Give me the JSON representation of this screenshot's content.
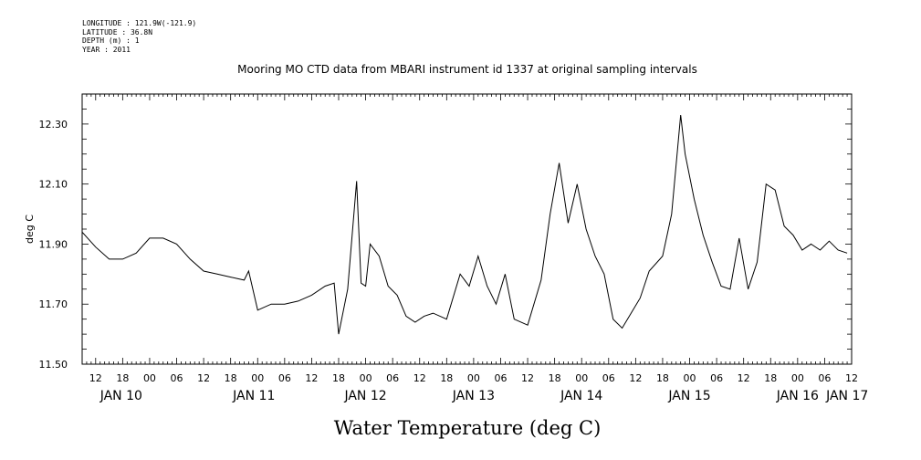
{
  "header": {
    "longitude": "LONGITUDE : 121.9W(-121.9)",
    "latitude": "LATITUDE : 36.8N",
    "depth": "DEPTH (m) : 1",
    "year": "YEAR : 2011"
  },
  "chart_data": {
    "type": "line",
    "title": "Mooring MO CTD data from MBARI instrument id 1337 at original sampling intervals",
    "xlabel": "Water Temperature (deg C)",
    "ylabel": "deg C",
    "xlim": [
      "2011-01-10T09:00",
      "2011-01-17T12:00"
    ],
    "ylim": [
      11.5,
      12.4
    ],
    "yticks": [
      "11.50",
      "11.70",
      "11.90",
      "12.10",
      "12.30"
    ],
    "xticks_hours": [
      "12",
      "18",
      "00",
      "06",
      "12",
      "18",
      "00",
      "06",
      "12",
      "18",
      "00",
      "06",
      "12",
      "18",
      "00",
      "06",
      "12",
      "18",
      "00",
      "06",
      "12",
      "18",
      "00",
      "06",
      "12",
      "18",
      "00",
      "06",
      "12"
    ],
    "day_labels": [
      "JAN 10",
      "JAN 11",
      "JAN 12",
      "JAN 13",
      "JAN 14",
      "JAN 15",
      "JAN 16",
      "JAN 17"
    ],
    "grid": false,
    "series": [
      {
        "x": [
          "2011-01-10T09:00",
          "2011-01-10T12:00",
          "2011-01-10T15:00",
          "2011-01-10T18:00",
          "2011-01-10T21:00",
          "2011-01-11T00:00",
          "2011-01-11T03:00",
          "2011-01-11T06:00",
          "2011-01-11T09:00",
          "2011-01-11T12:00",
          "2011-01-11T15:00",
          "2011-01-11T18:00",
          "2011-01-11T21:00",
          "2011-01-11T22:00",
          "2011-01-12T00:00",
          "2011-01-12T03:00",
          "2011-01-12T06:00",
          "2011-01-12T09:00",
          "2011-01-12T12:00",
          "2011-01-12T15:00",
          "2011-01-12T17:00",
          "2011-01-12T18:00",
          "2011-01-12T20:00",
          "2011-01-12T22:00",
          "2011-01-12T23:00",
          "2011-01-13T00:00",
          "2011-01-13T01:00",
          "2011-01-13T03:00",
          "2011-01-13T05:00",
          "2011-01-13T07:00",
          "2011-01-13T09:00",
          "2011-01-13T11:00",
          "2011-01-13T13:00",
          "2011-01-13T15:00",
          "2011-01-13T18:00",
          "2011-01-13T21:00",
          "2011-01-13T23:00",
          "2011-01-14T01:00",
          "2011-01-14T03:00",
          "2011-01-14T05:00",
          "2011-01-14T07:00",
          "2011-01-14T09:00",
          "2011-01-14T12:00",
          "2011-01-14T15:00",
          "2011-01-14T17:00",
          "2011-01-14T19:00",
          "2011-01-14T21:00",
          "2011-01-14T23:00",
          "2011-01-15T01:00",
          "2011-01-15T03:00",
          "2011-01-15T05:00",
          "2011-01-15T07:00",
          "2011-01-15T09:00",
          "2011-01-15T11:00",
          "2011-01-15T13:00",
          "2011-01-15T15:00",
          "2011-01-15T18:00",
          "2011-01-15T20:00",
          "2011-01-15T22:00",
          "2011-01-15T23:00",
          "2011-01-16T01:00",
          "2011-01-16T03:00",
          "2011-01-16T05:00",
          "2011-01-16T07:00",
          "2011-01-16T09:00",
          "2011-01-16T11:00",
          "2011-01-16T13:00",
          "2011-01-16T15:00",
          "2011-01-16T17:00",
          "2011-01-16T19:00",
          "2011-01-16T21:00",
          "2011-01-16T23:00",
          "2011-01-17T01:00",
          "2011-01-17T03:00",
          "2011-01-17T05:00",
          "2011-01-17T07:00",
          "2011-01-17T09:00",
          "2011-01-17T11:00"
        ],
        "y": [
          11.94,
          11.89,
          11.85,
          11.85,
          11.87,
          11.92,
          11.92,
          11.9,
          11.85,
          11.81,
          11.8,
          11.79,
          11.78,
          11.81,
          11.68,
          11.7,
          11.7,
          11.71,
          11.73,
          11.76,
          11.77,
          11.6,
          11.75,
          12.11,
          11.77,
          11.76,
          11.9,
          11.86,
          11.76,
          11.73,
          11.66,
          11.64,
          11.66,
          11.67,
          11.65,
          11.8,
          11.76,
          11.86,
          11.76,
          11.7,
          11.8,
          11.65,
          11.63,
          11.78,
          12.0,
          12.17,
          11.97,
          12.1,
          11.95,
          11.86,
          11.8,
          11.65,
          11.62,
          11.67,
          11.72,
          11.81,
          11.86,
          12.0,
          12.33,
          12.2,
          12.05,
          11.93,
          11.84,
          11.76,
          11.75,
          11.92,
          11.75,
          11.84,
          12.1,
          12.08,
          11.96,
          11.93,
          11.88,
          11.9,
          11.88,
          11.91,
          11.88,
          11.87
        ]
      }
    ]
  }
}
